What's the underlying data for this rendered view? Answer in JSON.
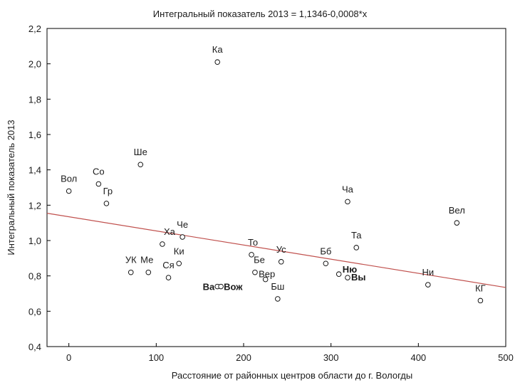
{
  "chart_data": {
    "type": "scatter",
    "title": "Интегральный показатель 2013 = 1,1346-0,0008*x",
    "xlabel": "Расстояние от районных центров области до г. Вологды",
    "ylabel": "Интегральный показатель 2013",
    "xlim": [
      -25,
      500
    ],
    "ylim": [
      0.4,
      2.2
    ],
    "x_ticks": [
      0,
      100,
      200,
      300,
      400,
      500
    ],
    "x_tick_labels": [
      "0",
      "100",
      "200",
      "300",
      "400",
      "500"
    ],
    "y_ticks": [
      0.4,
      0.6,
      0.8,
      1.0,
      1.2,
      1.4,
      1.6,
      1.8,
      2.0,
      2.2
    ],
    "y_tick_labels": [
      "0,4",
      "0,6",
      "0,8",
      "1,0",
      "1,2",
      "1,4",
      "1,6",
      "1,8",
      "2,0",
      "2,2"
    ],
    "grid": false,
    "regression": {
      "intercept": 1.1346,
      "slope": -0.0008,
      "color": "#c0504d"
    },
    "points": [
      {
        "label": "Ка",
        "x": 170,
        "y": 2.01
      },
      {
        "label": "Ше",
        "x": 82,
        "y": 1.43
      },
      {
        "label": "Вол",
        "x": 0,
        "y": 1.28
      },
      {
        "label": "Со",
        "x": 34,
        "y": 1.32
      },
      {
        "label": "Гр",
        "x": 43,
        "y": 1.21
      },
      {
        "label": "Ча",
        "x": 319,
        "y": 1.22
      },
      {
        "label": "Вел",
        "x": 444,
        "y": 1.1
      },
      {
        "label": "Че",
        "x": 130,
        "y": 1.02
      },
      {
        "label": "Ха",
        "x": 107,
        "y": 0.98
      },
      {
        "label": "Та",
        "x": 329,
        "y": 0.96
      },
      {
        "label": "То",
        "x": 209,
        "y": 0.92
      },
      {
        "label": "Ус",
        "x": 243,
        "y": 0.88
      },
      {
        "label": "Бб",
        "x": 294,
        "y": 0.87
      },
      {
        "label": "Ки",
        "x": 126,
        "y": 0.87
      },
      {
        "label": "УК",
        "x": 71,
        "y": 0.82
      },
      {
        "label": "Ме",
        "x": 91,
        "y": 0.82
      },
      {
        "label": "Бе",
        "x": 213,
        "y": 0.82
      },
      {
        "label": "Ню",
        "x": 309,
        "y": 0.81
      },
      {
        "label": "Ся",
        "x": 114,
        "y": 0.79
      },
      {
        "label": "Вер",
        "x": 225,
        "y": 0.78
      },
      {
        "label": "Вы",
        "x": 319,
        "y": 0.79
      },
      {
        "label": "Ни",
        "x": 411,
        "y": 0.75
      },
      {
        "label": "Ва",
        "x": 170,
        "y": 0.74
      },
      {
        "label": "Вож",
        "x": 174,
        "y": 0.74
      },
      {
        "label": "Бш",
        "x": 239,
        "y": 0.67
      },
      {
        "label": "КГ",
        "x": 471,
        "y": 0.66
      }
    ]
  }
}
